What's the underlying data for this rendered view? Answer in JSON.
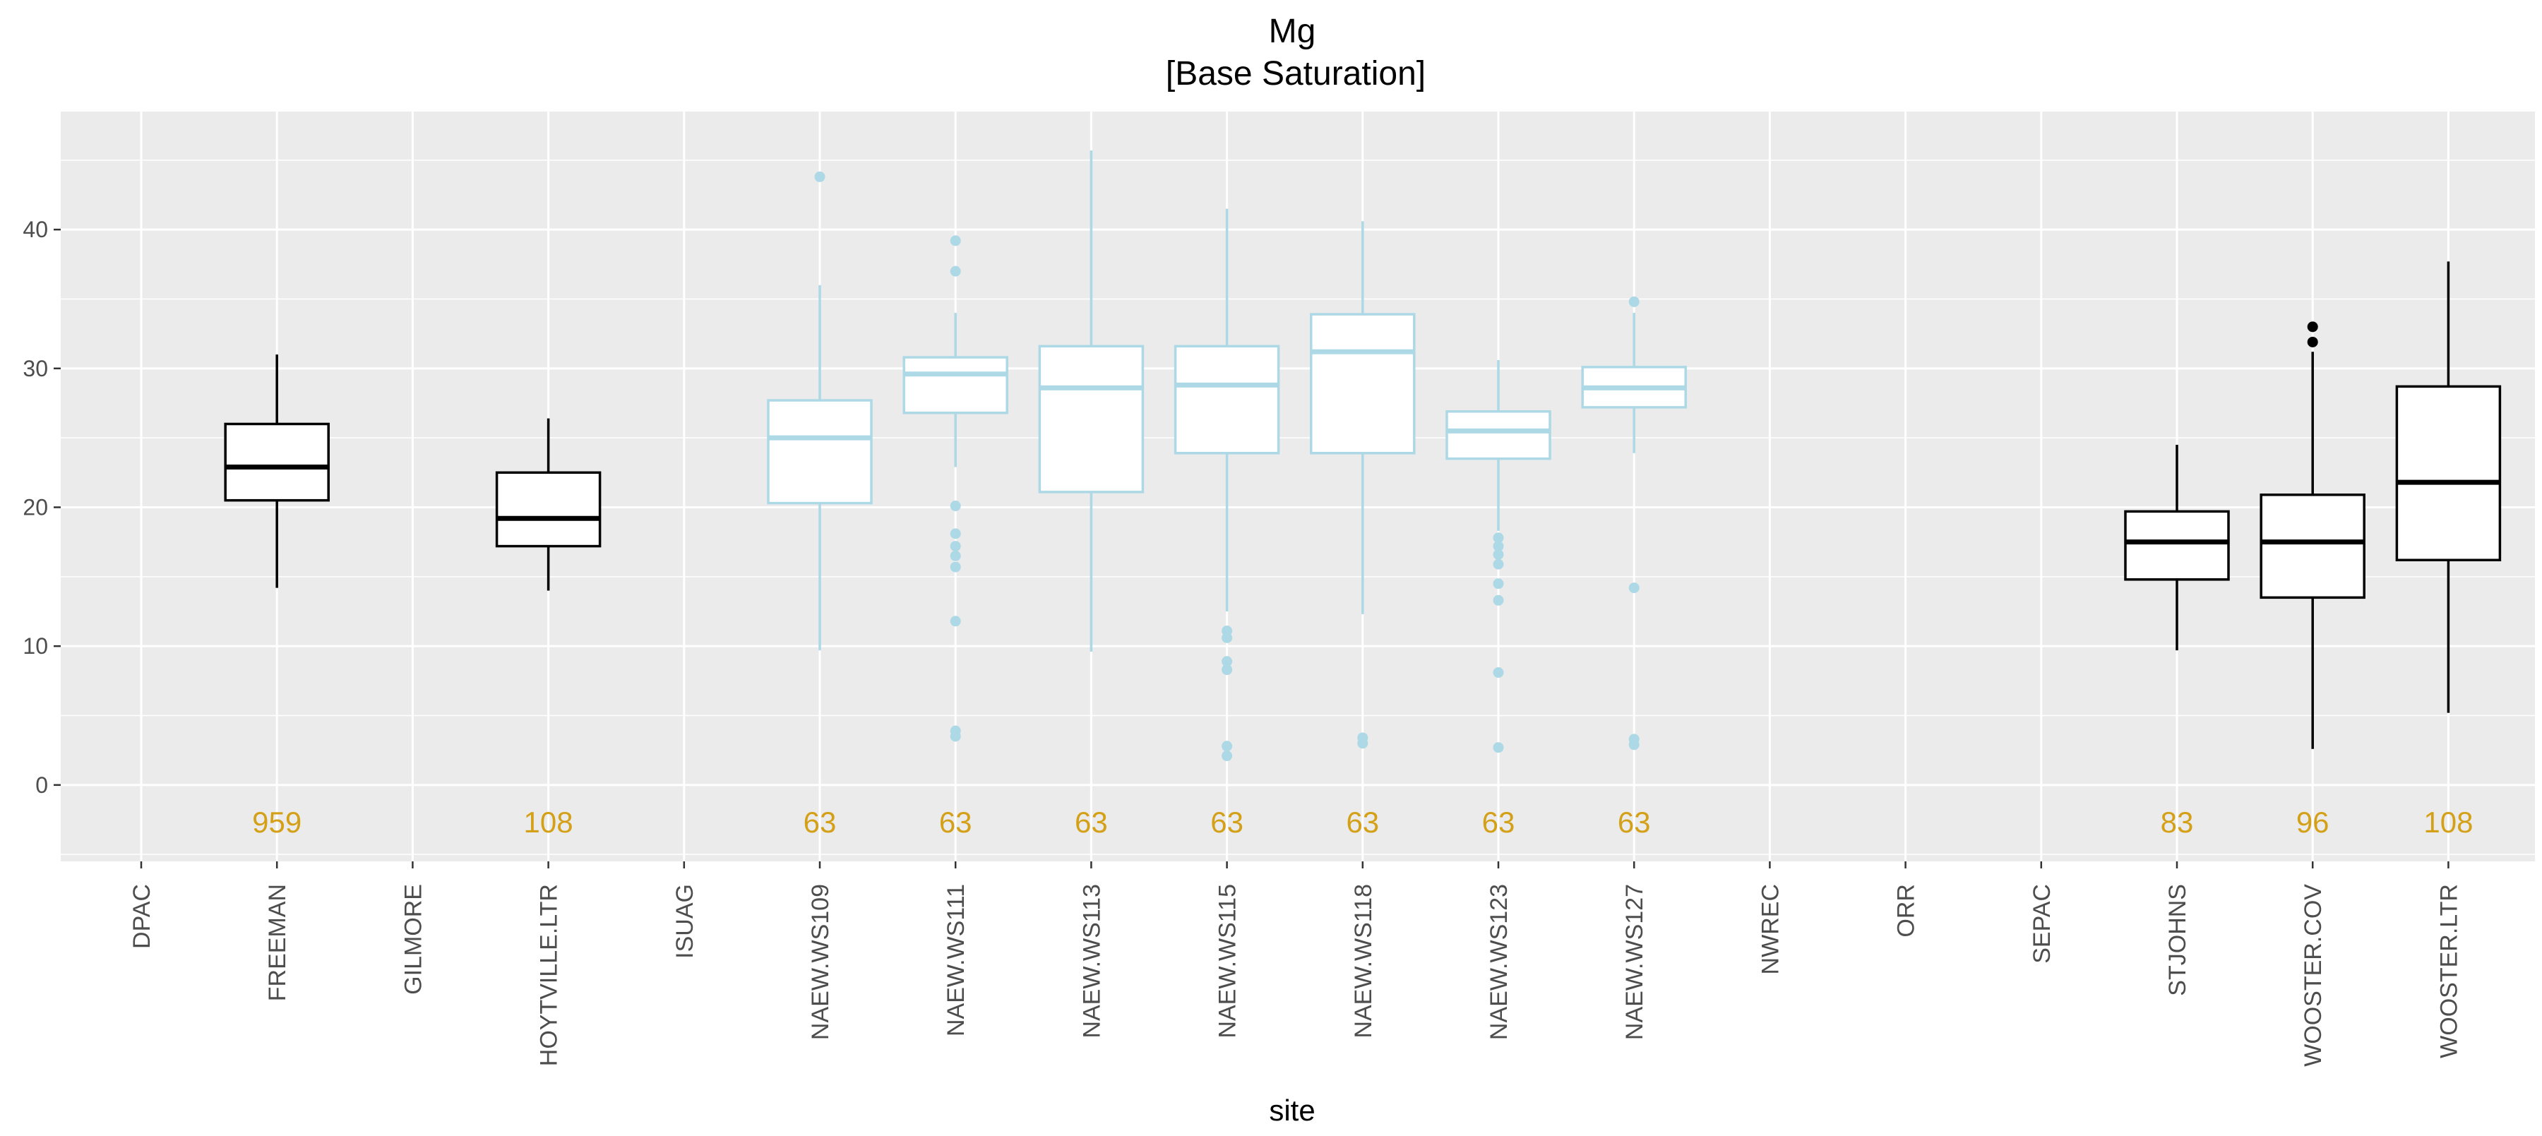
{
  "chart_data": {
    "type": "box",
    "title": "Mg",
    "subtitle": "[Base Saturation]",
    "xlabel": "site",
    "ylabel": "",
    "ylim": [
      -5.5,
      48.5
    ],
    "yticks": [
      0,
      10,
      20,
      30,
      40
    ],
    "grid": true,
    "legend": "none",
    "colors": {
      "panel": "#ebebeb",
      "grid": "#ffffff",
      "black_box": "#000000",
      "blue_box": "#add8e6",
      "count_label": "#d4a017",
      "tick_text": "#4d4d4d"
    },
    "categories": [
      "DPAC",
      "FREEMAN",
      "GILMORE",
      "HOYTVILLE.LTR",
      "ISUAG",
      "NAEW.WS109",
      "NAEW.WS111",
      "NAEW.WS113",
      "NAEW.WS115",
      "NAEW.WS118",
      "NAEW.WS123",
      "NAEW.WS127",
      "NWREC",
      "ORR",
      "SEPAC",
      "STJOHNS",
      "WOOSTER.COV",
      "WOOSTER.LTR"
    ],
    "count_label_y": -2.7,
    "boxes": [
      {
        "category": "FREEMAN",
        "color": "black",
        "min": 14.2,
        "q1": 20.5,
        "median": 22.9,
        "q3": 26.0,
        "max": 31.0,
        "outliers": [],
        "n": "959"
      },
      {
        "category": "HOYTVILLE.LTR",
        "color": "black",
        "min": 14.0,
        "q1": 17.2,
        "median": 19.2,
        "q3": 22.5,
        "max": 26.4,
        "outliers": [],
        "n": "108"
      },
      {
        "category": "NAEW.WS109",
        "color": "blue",
        "min": 9.7,
        "q1": 20.3,
        "median": 25.0,
        "q3": 27.7,
        "max": 36.0,
        "outliers": [
          43.8
        ],
        "n": "63"
      },
      {
        "category": "NAEW.WS111",
        "color": "blue",
        "min": 22.9,
        "q1": 26.8,
        "median": 29.6,
        "q3": 30.8,
        "max": 34.0,
        "outliers": [
          39.2,
          37.0,
          20.1,
          18.1,
          17.2,
          16.5,
          15.7,
          11.8,
          3.9,
          3.5
        ],
        "n": "63"
      },
      {
        "category": "NAEW.WS113",
        "color": "blue",
        "min": 9.6,
        "q1": 21.1,
        "median": 28.6,
        "q3": 31.6,
        "max": 45.7,
        "outliers": [],
        "n": "63"
      },
      {
        "category": "NAEW.WS115",
        "color": "blue",
        "min": 12.5,
        "q1": 23.9,
        "median": 28.8,
        "q3": 31.6,
        "max": 41.5,
        "outliers": [
          11.1,
          10.6,
          8.9,
          8.3,
          2.8,
          2.1
        ],
        "n": "63"
      },
      {
        "category": "NAEW.WS118",
        "color": "blue",
        "min": 12.3,
        "q1": 23.9,
        "median": 31.2,
        "q3": 33.9,
        "max": 40.6,
        "outliers": [
          3.4,
          3.0
        ],
        "n": "63"
      },
      {
        "category": "NAEW.WS123",
        "color": "blue",
        "min": 18.3,
        "q1": 23.5,
        "median": 25.5,
        "q3": 26.9,
        "max": 30.6,
        "outliers": [
          17.8,
          17.2,
          16.6,
          15.9,
          14.5,
          13.3,
          8.1,
          2.7
        ],
        "n": "63"
      },
      {
        "category": "NAEW.WS127",
        "color": "blue",
        "min": 23.9,
        "q1": 27.2,
        "median": 28.6,
        "q3": 30.1,
        "max": 34.0,
        "outliers": [
          34.8,
          14.2,
          3.3,
          2.9
        ],
        "n": "63"
      },
      {
        "category": "STJOHNS",
        "color": "black",
        "min": 9.7,
        "q1": 14.8,
        "median": 17.5,
        "q3": 19.7,
        "max": 24.5,
        "outliers": [],
        "n": "83"
      },
      {
        "category": "WOOSTER.COV",
        "color": "black",
        "min": 2.6,
        "q1": 13.5,
        "median": 17.5,
        "q3": 20.9,
        "max": 31.2,
        "outliers": [
          33.0,
          31.9
        ],
        "n": "96"
      },
      {
        "category": "WOOSTER.LTR",
        "color": "black",
        "min": 5.2,
        "q1": 16.2,
        "median": 21.8,
        "q3": 28.7,
        "max": 37.7,
        "outliers": [],
        "n": "108"
      }
    ]
  }
}
